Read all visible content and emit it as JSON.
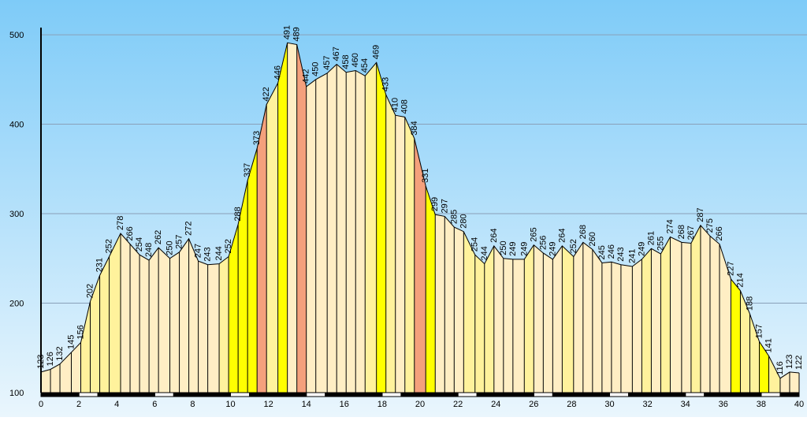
{
  "chart_data": {
    "type": "elevation-profile",
    "x": [
      0,
      0.5,
      1.0,
      1.6,
      2.1,
      2.6,
      3.1,
      3.6,
      4.2,
      4.7,
      5.2,
      5.7,
      6.2,
      6.8,
      7.3,
      7.8,
      8.3,
      8.8,
      9.4,
      9.9,
      10.4,
      10.9,
      11.4,
      11.9,
      12.5,
      13.0,
      13.5,
      14.0,
      14.5,
      15.1,
      15.6,
      16.1,
      16.6,
      17.1,
      17.7,
      18.2,
      18.7,
      19.2,
      19.7,
      20.3,
      20.8,
      21.3,
      21.8,
      22.3,
      22.9,
      23.4,
      23.9,
      24.4,
      24.9,
      25.5,
      26.0,
      26.5,
      27.0,
      27.5,
      28.1,
      28.6,
      29.1,
      29.6,
      30.1,
      30.6,
      31.2,
      31.7,
      32.2,
      32.7,
      33.2,
      33.8,
      34.3,
      34.8,
      35.3,
      35.8,
      36.4,
      36.9,
      37.4,
      37.9,
      38.4,
      39.0,
      39.5,
      40.0
    ],
    "values": [
      123,
      126,
      132,
      145,
      156,
      202,
      231,
      252,
      278,
      266,
      254,
      248,
      262,
      250,
      257,
      272,
      247,
      243,
      244,
      252,
      288,
      337,
      373,
      422,
      446,
      491,
      489,
      442,
      450,
      457,
      467,
      458,
      460,
      454,
      469,
      433,
      410,
      408,
      384,
      331,
      299,
      297,
      285,
      280,
      254,
      244,
      264,
      250,
      249,
      249,
      265,
      256,
      249,
      264,
      252,
      268,
      260,
      245,
      246,
      243,
      241,
      249,
      261,
      255,
      274,
      268,
      267,
      287,
      275,
      266,
      227,
      214,
      188,
      157,
      141,
      116,
      123,
      122
    ],
    "segment_colors": [
      "#ffeec4",
      "#ffeec4",
      "#ffeec4",
      "#ffeec4",
      "#fff29c",
      "#fff29c",
      "#fff29c",
      "#fff29c",
      "#ffeec4",
      "#ffeec4",
      "#ffeec4",
      "#ffeec4",
      "#ffeec4",
      "#ffeec4",
      "#ffeec4",
      "#ffeec4",
      "#ffeec4",
      "#ffeec4",
      "#fff29c",
      "#ffff00",
      "#ffff00",
      "#ffff00",
      "#f4a07c",
      "#fff29c",
      "#ffff00",
      "#ffeec4",
      "#f4a07c",
      "#ffeec4",
      "#ffeec4",
      "#ffeec4",
      "#ffeec4",
      "#ffeec4",
      "#ffeec4",
      "#fff29c",
      "#ffff00",
      "#fff29c",
      "#ffeec4",
      "#fff29c",
      "#f4a07c",
      "#ffff00",
      "#ffeec4",
      "#ffeec4",
      "#ffeec4",
      "#fff29c",
      "#fff29c",
      "#fff29c",
      "#ffeec4",
      "#ffeec4",
      "#ffeec4",
      "#fff29c",
      "#ffeec4",
      "#ffeec4",
      "#ffeec4",
      "#fff29c",
      "#ffeec4",
      "#ffeec4",
      "#ffeec4",
      "#ffeec4",
      "#ffeec4",
      "#ffeec4",
      "#ffeec4",
      "#fff29c",
      "#ffeec4",
      "#fff29c",
      "#ffeec4",
      "#ffeec4",
      "#fff29c",
      "#ffeec4",
      "#ffeec4",
      "#ffeec4",
      "#ffff00",
      "#fff29c",
      "#fff29c",
      "#ffff00",
      "#fff29c",
      "#ffeec4",
      "#ffeec4"
    ],
    "xlim": [
      0,
      40
    ],
    "xticks": [
      0,
      2,
      4,
      6,
      8,
      10,
      12,
      14,
      16,
      18,
      20,
      22,
      24,
      26,
      28,
      30,
      32,
      34,
      36,
      38,
      40
    ],
    "ylim": [
      100,
      508
    ],
    "yticks": [
      100,
      200,
      300,
      400,
      500
    ],
    "grid": true
  }
}
